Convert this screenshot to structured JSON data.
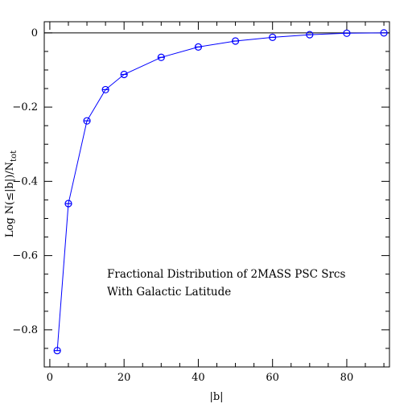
{
  "chart_data": {
    "type": "line",
    "title": "",
    "xlabel": "|b|",
    "ylabel": "Log N(≤|b|)/N",
    "ylabel_subscript": "tot",
    "xlim": [
      -1.5,
      91.5
    ],
    "ylim": [
      -0.9,
      0.03
    ],
    "x_ticks": [
      0,
      20,
      40,
      60,
      80
    ],
    "y_ticks": [
      0,
      -0.2,
      -0.4,
      -0.6,
      -0.8
    ],
    "x_tick_labels": [
      "0",
      "20",
      "40",
      "60",
      "80"
    ],
    "y_tick_labels": [
      "0",
      "−0.2",
      "−0.4",
      "−0.6",
      "−0.8"
    ],
    "reference_line_y": 0,
    "grid": false,
    "annotation": [
      "Fractional Distribution of 2MASS PSC Srcs",
      "With Galactic Latitude"
    ],
    "series": [
      {
        "color": "#0000ff",
        "marker": "circle-crossed",
        "x": [
          2,
          5,
          10,
          15,
          20,
          30,
          40,
          50,
          60,
          70,
          80,
          90
        ],
        "y": [
          -0.856,
          -0.46,
          -0.237,
          -0.153,
          -0.112,
          -0.066,
          -0.038,
          -0.022,
          -0.012,
          -0.005,
          -0.001,
          0.0
        ]
      }
    ]
  }
}
